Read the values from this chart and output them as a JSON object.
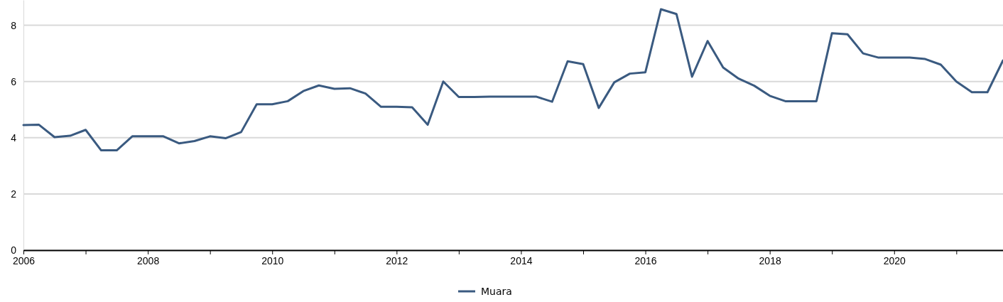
{
  "chart_data": {
    "type": "line",
    "xlim": [
      2006,
      2021.75
    ],
    "ylim": [
      0,
      8.9
    ],
    "xticks": [
      2006,
      {
        "value": 2007,
        "label": null
      },
      2008,
      {
        "value": 2009,
        "label": null
      },
      2010,
      {
        "value": 2011,
        "label": null
      },
      2012,
      {
        "value": 2013,
        "label": null
      },
      2014,
      {
        "value": 2015,
        "label": null
      },
      2016,
      {
        "value": 2017,
        "label": null
      },
      2018,
      {
        "value": 2019,
        "label": null
      },
      2020,
      {
        "value": 2021,
        "label": null
      }
    ],
    "yticks": [
      0,
      2,
      4,
      6,
      8
    ],
    "grid": "y",
    "legend": "bottom",
    "marker": "none",
    "line_style": "solid",
    "x": [
      2006,
      2006.25,
      2006.5,
      2006.75,
      2007,
      2007.25,
      2007.5,
      2007.75,
      2008,
      2008.25,
      2008.5,
      2008.75,
      2009,
      2009.25,
      2009.5,
      2009.75,
      2010,
      2010.25,
      2010.5,
      2010.75,
      2011,
      2011.25,
      2011.5,
      2011.75,
      2012,
      2012.25,
      2012.5,
      2012.75,
      2013,
      2013.25,
      2013.5,
      2013.75,
      2014,
      2014.25,
      2014.5,
      2014.75,
      2015,
      2015.25,
      2015.5,
      2015.75,
      2016,
      2016.25,
      2016.5,
      2016.75,
      2017,
      2017.25,
      2017.5,
      2017.75,
      2018,
      2018.25,
      2018.5,
      2018.75,
      2019,
      2019.25,
      2019.5,
      2019.75,
      2020,
      2020.25,
      2020.5,
      2020.75,
      2021,
      2021.25,
      2021.5,
      2021.75
    ],
    "series": [
      {
        "name": "Muara",
        "color": "#3a5a80",
        "values": [
          4.45,
          4.46,
          4.02,
          4.07,
          4.28,
          3.55,
          3.55,
          4.05,
          4.05,
          4.05,
          3.8,
          3.88,
          4.05,
          3.98,
          4.2,
          5.19,
          5.19,
          5.3,
          5.66,
          5.86,
          5.74,
          5.76,
          5.57,
          5.1,
          5.1,
          5.08,
          4.46,
          6.0,
          5.45,
          5.45,
          5.46,
          5.46,
          5.46,
          5.46,
          5.28,
          6.72,
          6.62,
          5.06,
          5.97,
          6.28,
          6.33,
          8.57,
          8.4,
          6.17,
          7.44,
          6.5,
          6.1,
          5.85,
          5.49,
          5.3,
          5.3,
          5.3,
          7.72,
          7.68,
          7.0,
          6.85,
          6.85,
          6.85,
          6.8,
          6.6,
          6.0,
          5.62,
          5.62,
          6.75
        ]
      }
    ]
  }
}
